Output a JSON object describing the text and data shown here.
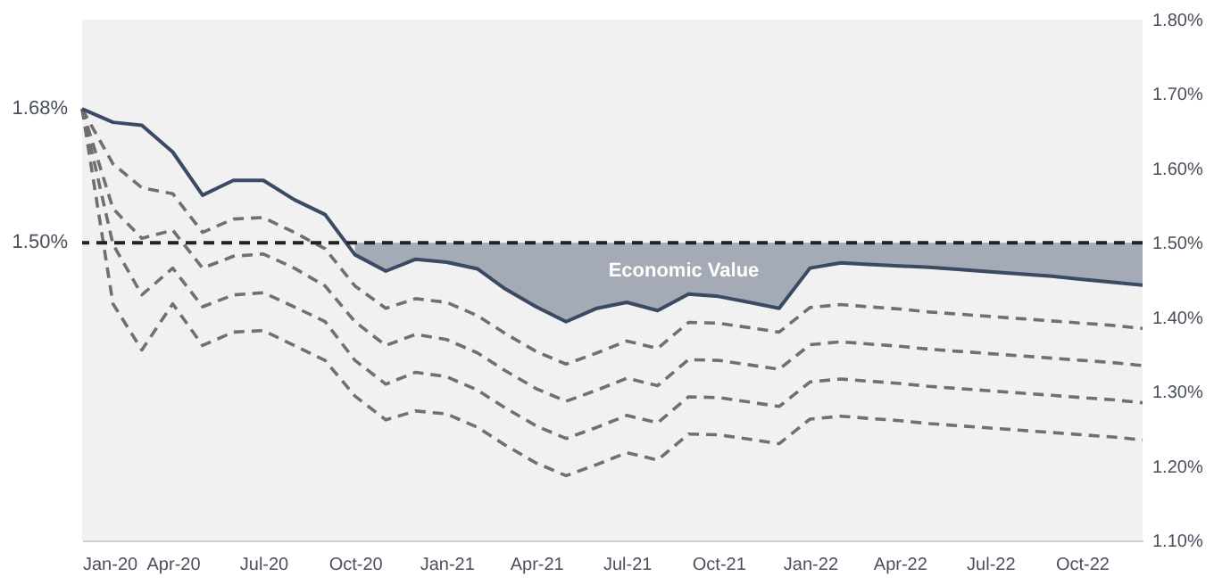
{
  "chart_data": {
    "type": "line",
    "x": [
      "2020-01",
      "2020-02",
      "2020-03",
      "2020-04",
      "2020-05",
      "2020-06",
      "2020-07",
      "2020-08",
      "2020-09",
      "2020-10",
      "2020-11",
      "2020-12",
      "2021-01",
      "2021-02",
      "2021-03",
      "2021-04",
      "2021-05",
      "2021-06",
      "2021-07",
      "2021-08",
      "2021-09",
      "2021-10",
      "2021-11",
      "2021-12",
      "2022-01",
      "2022-02",
      "2022-03",
      "2022-04",
      "2022-05",
      "2022-06",
      "2022-07",
      "2022-08",
      "2022-09",
      "2022-10",
      "2022-11",
      "2022-12"
    ],
    "series": [
      {
        "color": "#707070",
        "line_style": "dashed",
        "values": [
          1.68,
          1.606,
          1.574,
          1.566,
          1.514,
          1.532,
          1.534,
          1.514,
          1.492,
          1.442,
          1.412,
          1.425,
          1.42,
          1.402,
          1.378,
          1.354,
          1.337,
          1.352,
          1.368,
          1.358,
          1.393,
          1.392,
          1.386,
          1.38,
          1.413,
          1.417,
          1.414,
          1.411,
          1.407,
          1.404,
          1.401,
          1.398,
          1.395,
          1.392,
          1.389,
          1.385
        ]
      },
      {
        "color": "#707070",
        "line_style": "dashed",
        "values": [
          1.68,
          1.546,
          1.506,
          1.517,
          1.466,
          1.482,
          1.485,
          1.466,
          1.442,
          1.394,
          1.362,
          1.377,
          1.37,
          1.352,
          1.328,
          1.304,
          1.287,
          1.302,
          1.318,
          1.308,
          1.343,
          1.342,
          1.336,
          1.33,
          1.363,
          1.367,
          1.364,
          1.361,
          1.357,
          1.354,
          1.351,
          1.348,
          1.345,
          1.342,
          1.339,
          1.335
        ]
      },
      {
        "color": "#707070",
        "line_style": "dashed",
        "values": [
          1.68,
          1.498,
          1.43,
          1.466,
          1.414,
          1.43,
          1.433,
          1.414,
          1.394,
          1.342,
          1.31,
          1.326,
          1.32,
          1.302,
          1.278,
          1.254,
          1.237,
          1.252,
          1.268,
          1.258,
          1.293,
          1.292,
          1.286,
          1.28,
          1.313,
          1.317,
          1.314,
          1.311,
          1.307,
          1.304,
          1.301,
          1.298,
          1.295,
          1.292,
          1.289,
          1.285
        ]
      },
      {
        "color": "#707070",
        "line_style": "dashed",
        "values": [
          1.68,
          1.418,
          1.356,
          1.418,
          1.362,
          1.38,
          1.382,
          1.362,
          1.342,
          1.294,
          1.262,
          1.274,
          1.27,
          1.252,
          1.228,
          1.204,
          1.187,
          1.202,
          1.218,
          1.208,
          1.243,
          1.242,
          1.236,
          1.23,
          1.263,
          1.267,
          1.264,
          1.261,
          1.257,
          1.254,
          1.251,
          1.248,
          1.245,
          1.242,
          1.239,
          1.235
        ]
      },
      {
        "color": "#3a4a63",
        "line_style": "solid",
        "values": [
          1.68,
          1.662,
          1.658,
          1.622,
          1.564,
          1.584,
          1.584,
          1.558,
          1.538,
          1.484,
          1.462,
          1.478,
          1.474,
          1.465,
          1.438,
          1.414,
          1.394,
          1.412,
          1.42,
          1.409,
          1.431,
          1.428,
          1.42,
          1.412,
          1.466,
          1.473,
          1.471,
          1.469,
          1.467,
          1.464,
          1.461,
          1.458,
          1.455,
          1.451,
          1.447,
          1.443
        ],
        "lower": [
          null,
          null,
          null,
          null,
          null,
          null,
          null,
          null,
          null,
          1.484,
          1.462,
          1.478,
          1.474,
          1.465,
          1.438,
          1.414,
          1.394,
          1.412,
          1.42,
          1.409,
          1.431,
          1.428,
          1.42,
          1.412,
          1.466,
          1.473,
          1.471,
          1.469,
          1.467,
          1.464,
          1.461,
          1.458,
          1.455,
          1.451,
          1.447,
          1.443
        ],
        "upper": [
          null,
          null,
          null,
          null,
          null,
          null,
          null,
          null,
          null,
          1.5,
          1.5,
          1.5,
          1.5,
          1.5,
          1.5,
          1.5,
          1.5,
          1.5,
          1.5,
          1.5,
          1.5,
          1.5,
          1.5,
          1.5,
          1.5,
          1.5,
          1.5,
          1.5,
          1.5,
          1.5,
          1.5,
          1.5,
          1.5,
          1.5,
          1.5,
          1.5
        ]
      }
    ],
    "xlim": [
      "2020-01",
      "2022-12"
    ],
    "xticks": [
      {
        "value": "2020-01",
        "label": "Jan-20"
      },
      {
        "value": "2020-04",
        "label": "Apr-20"
      },
      {
        "value": "2020-07",
        "label": "Jul-20"
      },
      {
        "value": "2020-10",
        "label": "Oct-20"
      },
      {
        "value": "2021-01",
        "label": "Jan-21"
      },
      {
        "value": "2021-04",
        "label": "Apr-21"
      },
      {
        "value": "2021-07",
        "label": "Jul-21"
      },
      {
        "value": "2021-10",
        "label": "Oct-21"
      },
      {
        "value": "2022-01",
        "label": "Jan-22"
      },
      {
        "value": "2022-04",
        "label": "Apr-22"
      },
      {
        "value": "2022-07",
        "label": "Jul-22"
      },
      {
        "value": "2022-10",
        "label": "Oct-22"
      }
    ],
    "ylim": [
      1.1,
      1.8
    ],
    "yticks": [
      {
        "value": 1.1,
        "label": "1.10%"
      },
      {
        "value": 1.2,
        "label": "1.20%"
      },
      {
        "value": 1.3,
        "label": "1.30%"
      },
      {
        "value": 1.4,
        "label": "1.40%"
      },
      {
        "value": 1.5,
        "label": "1.50%"
      },
      {
        "value": 1.6,
        "label": "1.60%"
      },
      {
        "value": 1.7,
        "label": "1.70%"
      },
      {
        "value": 1.8,
        "label": "1.80%"
      }
    ],
    "ref_lines": [
      {
        "axis": "y",
        "value": 1.5,
        "label": "1.50%",
        "color": "#222222",
        "line_style": "dashed"
      }
    ],
    "annotations": [
      {
        "text": "1.68%",
        "x": "2020-01",
        "y": 1.68
      },
      "Economic Value"
    ],
    "grid": false,
    "marker": "none"
  }
}
